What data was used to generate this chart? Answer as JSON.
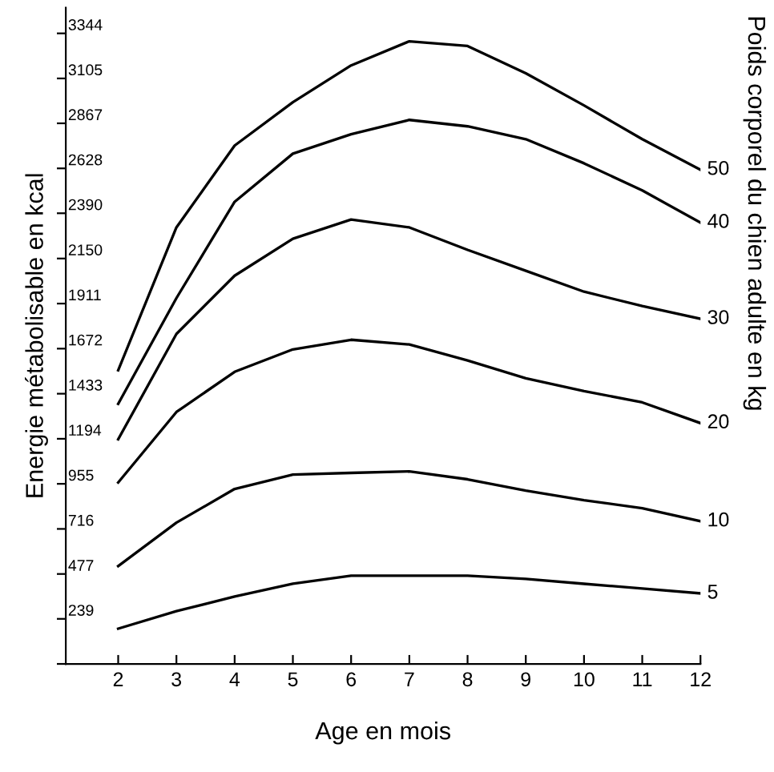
{
  "chart_data": {
    "type": "line",
    "xlabel": "Age en mois",
    "ylabel": "Energie métabolisable en kcal",
    "y2label": "Poids corporel du chien adulte en kg",
    "x": [
      2,
      3,
      4,
      5,
      6,
      7,
      8,
      9,
      10,
      11,
      12
    ],
    "series": [
      {
        "name": "5",
        "color": "#000000",
        "values": [
          187,
          280,
          357,
          425,
          468,
          468,
          468,
          451,
          425,
          400,
          374
        ]
      },
      {
        "name": "10",
        "color": "#000000",
        "values": [
          519,
          749,
          928,
          1004,
          1013,
          1021,
          979,
          919,
          868,
          826,
          757
        ]
      },
      {
        "name": "20",
        "color": "#000000",
        "values": [
          962,
          1336,
          1549,
          1668,
          1719,
          1694,
          1609,
          1515,
          1447,
          1387,
          1277
        ]
      },
      {
        "name": "30",
        "color": "#000000",
        "values": [
          1191,
          1750,
          2059,
          2255,
          2357,
          2315,
          2196,
          2085,
          1974,
          1898,
          1830
        ]
      },
      {
        "name": "40",
        "color": "#000000",
        "values": [
          1379,
          1940,
          2451,
          2706,
          2809,
          2885,
          2851,
          2783,
          2655,
          2511,
          2340
        ]
      },
      {
        "name": "50",
        "color": "#000000",
        "values": [
          1557,
          2315,
          2749,
          2979,
          3174,
          3302,
          3277,
          3132,
          2962,
          2783,
          2621
        ]
      }
    ],
    "xlim": [
      1.1,
      12
    ],
    "xticks": [
      2,
      3,
      4,
      5,
      6,
      7,
      8,
      9,
      10,
      11,
      12
    ],
    "ylim": [
      0,
      3480
    ],
    "yticks": [
      {
        "value": 0,
        "label": null
      },
      239,
      477,
      716,
      955,
      1194,
      1433,
      1672,
      1911,
      2150,
      2390,
      2628,
      2867,
      3105,
      3344
    ],
    "grid": false,
    "legend": false,
    "marker": "none",
    "line_style": "solid"
  }
}
